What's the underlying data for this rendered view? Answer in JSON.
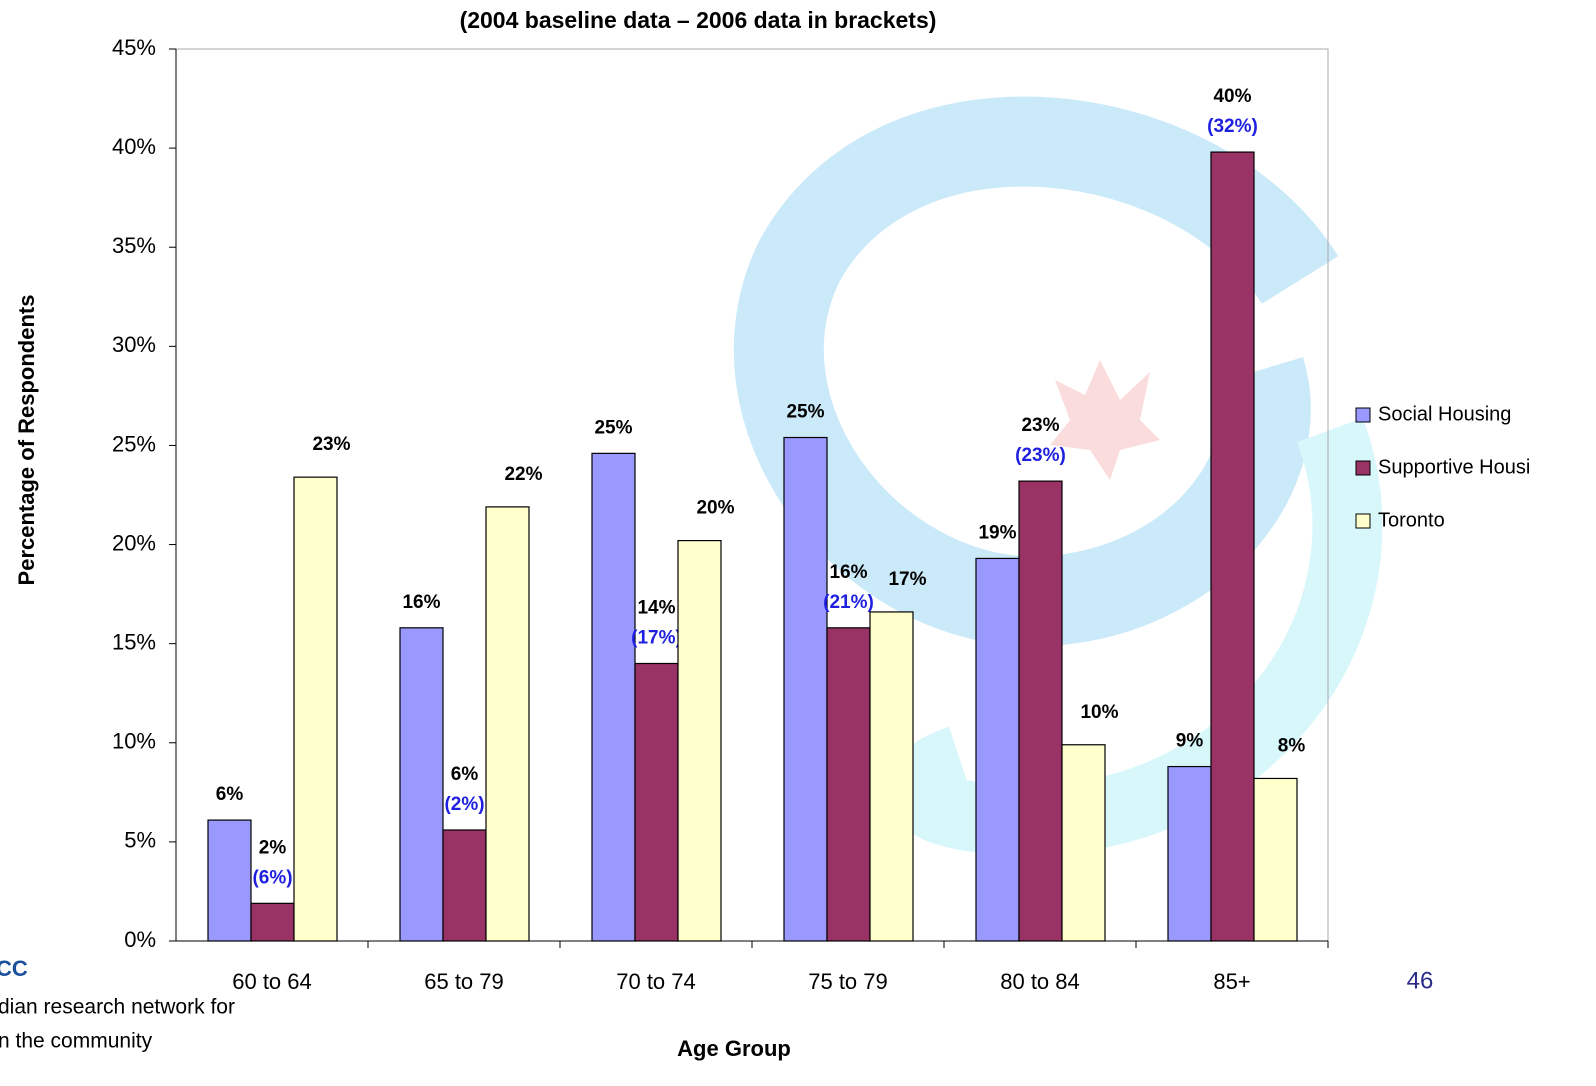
{
  "chart_data": {
    "type": "bar",
    "title": "(2004 baseline data – 2006 data in brackets)",
    "y_label": "Percentage of Respondents",
    "x_label": "Age Group",
    "categories": [
      "60 to 64",
      "65 to 79",
      "70 to 74",
      "75 to 79",
      "80 to 84",
      "85+"
    ],
    "series": [
      {
        "name": "Social Housing",
        "color": "#9999ff",
        "values": [
          6.1,
          15.8,
          24.6,
          25.4,
          19.3,
          8.8
        ],
        "value_labels": [
          "6%",
          "16%",
          "25%",
          "25%",
          "19%",
          "9%"
        ]
      },
      {
        "name": "Supportive Housi",
        "color": "#993366",
        "values": [
          1.9,
          5.6,
          14,
          15.8,
          23.2,
          39.8
        ],
        "value_labels": [
          "2%",
          "6%",
          "14%",
          "16%",
          "23%",
          "40%"
        ],
        "annotations": [
          "(6%)",
          "(2%)",
          "(17%)",
          "(21%)",
          "(23%)",
          "(32%)"
        ]
      },
      {
        "name": "Toronto",
        "color": "#ffffcc",
        "values": [
          23.4,
          21.9,
          20.2,
          16.6,
          9.9,
          8.2
        ],
        "value_labels": [
          "23%",
          "22%",
          "20%",
          "17%",
          "10%",
          "8%"
        ]
      }
    ],
    "ylim": [
      0,
      45
    ],
    "yticks": [
      {
        "value": 0,
        "label": "0%"
      },
      {
        "value": 5,
        "label": "5%"
      },
      {
        "value": 10,
        "label": "10%"
      },
      {
        "value": 15,
        "label": "15%"
      },
      {
        "value": 20,
        "label": "20%"
      },
      {
        "value": 25,
        "label": "25%"
      },
      {
        "value": 30,
        "label": "30%"
      },
      {
        "value": 35,
        "label": "35%"
      },
      {
        "value": 40,
        "label": "40%"
      },
      {
        "value": 45,
        "label": "45%"
      }
    ],
    "legend": "right",
    "page_number": "46",
    "logo_lines": [
      "CC",
      "dian research network for",
      "n the community"
    ]
  }
}
